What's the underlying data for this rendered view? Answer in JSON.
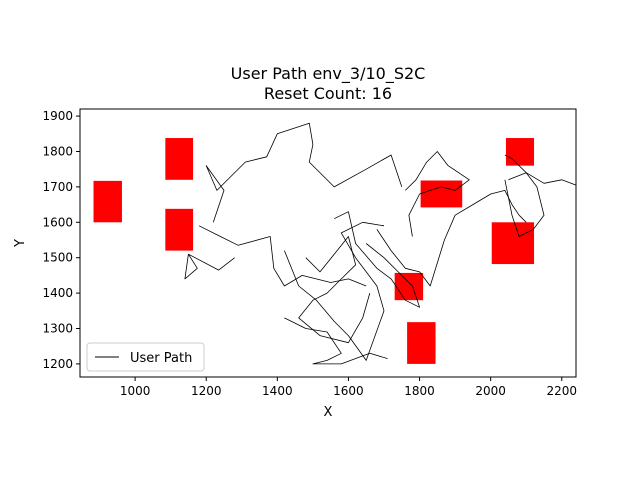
{
  "chart_data": {
    "type": "line",
    "title": "User Path env_3/10_S2C",
    "subtitle": "Reset Count: 16",
    "xlabel": "X",
    "ylabel": "Y",
    "xlim": [
      845,
      2240
    ],
    "ylim": [
      1163,
      1920
    ],
    "xticks": [
      1000,
      1200,
      1400,
      1600,
      1800,
      2000,
      2200
    ],
    "yticks": [
      1200,
      1300,
      1400,
      1500,
      1600,
      1700,
      1800,
      1900
    ],
    "legend_placement": "lower-left",
    "grid": false,
    "colors": {
      "path": "#000000",
      "obstacle": "#ff0000",
      "frame": "#000000"
    },
    "legend": [
      {
        "label": "User Path",
        "symbol": "line",
        "color": "#000000"
      }
    ],
    "obstacles": [
      {
        "x0": 883,
        "x1": 963,
        "y0": 1600,
        "y1": 1717
      },
      {
        "x0": 1085,
        "x1": 1163,
        "y0": 1720,
        "y1": 1838
      },
      {
        "x0": 1085,
        "x1": 1163,
        "y0": 1520,
        "y1": 1638
      },
      {
        "x0": 1730,
        "x1": 1810,
        "y0": 1380,
        "y1": 1457
      },
      {
        "x0": 1803,
        "x1": 1920,
        "y0": 1642,
        "y1": 1718
      },
      {
        "x0": 1765,
        "x1": 1845,
        "y0": 1200,
        "y1": 1318
      },
      {
        "x0": 2043,
        "x1": 2122,
        "y0": 1760,
        "y1": 1838
      },
      {
        "x0": 2003,
        "x1": 2122,
        "y0": 1482,
        "y1": 1600
      }
    ],
    "series": [
      {
        "values": [
          [
            [
              1150,
              1510
            ],
            [
              1140,
              1440
            ],
            [
              1175,
              1470
            ],
            [
              1150,
              1510
            ],
            [
              1235,
              1465
            ],
            [
              1280,
              1500
            ]
          ],
          [
            [
              1180,
              1590
            ],
            [
              1240,
              1560
            ],
            [
              1290,
              1535
            ],
            [
              1380,
              1560
            ],
            [
              1390,
              1470
            ],
            [
              1420,
              1420
            ],
            [
              1470,
              1450
            ],
            [
              1550,
              1430
            ],
            [
              1600,
              1440
            ],
            [
              1650,
              1420
            ]
          ],
          [
            [
              1220,
              1600
            ],
            [
              1250,
              1690
            ],
            [
              1200,
              1760
            ],
            [
              1230,
              1690
            ],
            [
              1310,
              1770
            ],
            [
              1370,
              1785
            ],
            [
              1400,
              1850
            ],
            [
              1490,
              1880
            ],
            [
              1500,
              1820
            ],
            [
              1490,
              1770
            ],
            [
              1560,
              1700
            ],
            [
              1650,
              1750
            ],
            [
              1720,
              1790
            ],
            [
              1750,
              1700
            ]
          ],
          [
            [
              1420,
              1520
            ],
            [
              1460,
              1420
            ],
            [
              1510,
              1380
            ],
            [
              1560,
              1320
            ],
            [
              1600,
              1280
            ],
            [
              1650,
              1210
            ],
            [
              1700,
              1350
            ],
            [
              1680,
              1420
            ],
            [
              1620,
              1500
            ],
            [
              1580,
              1570
            ],
            [
              1640,
              1600
            ],
            [
              1700,
              1590
            ]
          ],
          [
            [
              1480,
              1500
            ],
            [
              1520,
              1460
            ],
            [
              1560,
              1510
            ],
            [
              1600,
              1560
            ],
            [
              1620,
              1480
            ],
            [
              1580,
              1440
            ],
            [
              1540,
              1400
            ],
            [
              1500,
              1380
            ],
            [
              1460,
              1330
            ],
            [
              1520,
              1280
            ],
            [
              1600,
              1260
            ],
            [
              1640,
              1330
            ],
            [
              1660,
              1400
            ]
          ],
          [
            [
              1560,
              1610
            ],
            [
              1600,
              1630
            ],
            [
              1620,
              1540
            ],
            [
              1680,
              1470
            ],
            [
              1720,
              1440
            ],
            [
              1760,
              1380
            ],
            [
              1800,
              1360
            ],
            [
              1780,
              1420
            ],
            [
              1740,
              1460
            ],
            [
              1700,
              1500
            ],
            [
              1650,
              1540
            ]
          ],
          [
            [
              1680,
              1580
            ],
            [
              1720,
              1520
            ],
            [
              1760,
              1470
            ],
            [
              1800,
              1460
            ],
            [
              1830,
              1420
            ],
            [
              1870,
              1550
            ],
            [
              1900,
              1620
            ],
            [
              1950,
              1650
            ],
            [
              2000,
              1680
            ],
            [
              2040,
              1690
            ],
            [
              2060,
              1650
            ],
            [
              2080,
              1620
            ],
            [
              2100,
              1600
            ]
          ],
          [
            [
              1760,
              1690
            ],
            [
              1790,
              1720
            ],
            [
              1820,
              1770
            ],
            [
              1850,
              1800
            ],
            [
              1880,
              1760
            ],
            [
              1940,
              1720
            ],
            [
              1900,
              1690
            ],
            [
              1860,
              1700
            ],
            [
              1800,
              1680
            ],
            [
              1770,
              1620
            ],
            [
              1780,
              1560
            ]
          ],
          [
            [
              2050,
              1720
            ],
            [
              2100,
              1740
            ],
            [
              2150,
              1710
            ],
            [
              2200,
              1720
            ],
            [
              2240,
              1705
            ]
          ],
          [
            [
              2040,
              1720
            ],
            [
              2060,
              1620
            ],
            [
              2080,
              1560
            ],
            [
              2120,
              1580
            ],
            [
              2150,
              1620
            ],
            [
              2130,
              1700
            ],
            [
              2100,
              1740
            ],
            [
              2060,
              1780
            ],
            [
              2040,
              1790
            ]
          ],
          [
            [
              1420,
              1330
            ],
            [
              1480,
              1300
            ],
            [
              1540,
              1290
            ],
            [
              1580,
              1230
            ],
            [
              1540,
              1210
            ],
            [
              1500,
              1200
            ],
            [
              1580,
              1200
            ],
            [
              1660,
              1230
            ],
            [
              1710,
              1215
            ]
          ]
        ]
      }
    ]
  }
}
